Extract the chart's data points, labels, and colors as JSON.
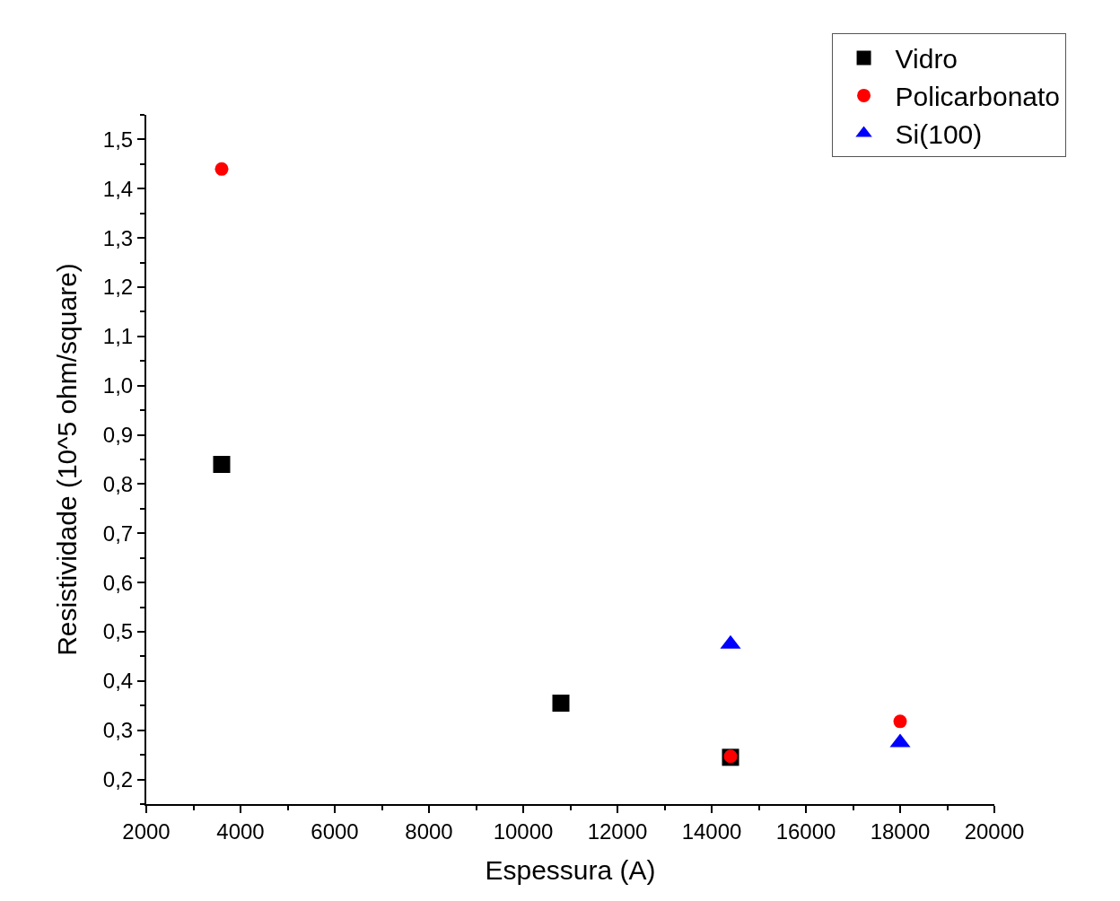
{
  "chart_data": {
    "type": "scatter",
    "xlabel": "Espessura (A)",
    "ylabel": "Resistividade (10^5 ohm/square)",
    "xlim": [
      2000,
      20000
    ],
    "xticks": [
      2000,
      4000,
      6000,
      8000,
      10000,
      12000,
      14000,
      16000,
      18000,
      20000
    ],
    "ylim": [
      0.15,
      1.55
    ],
    "yticks": [
      {
        "value": 0.2,
        "label": "0,2"
      },
      {
        "value": 0.3,
        "label": "0,3"
      },
      {
        "value": 0.4,
        "label": "0,4"
      },
      {
        "value": 0.5,
        "label": "0,5"
      },
      {
        "value": 0.6,
        "label": "0,6"
      },
      {
        "value": 0.7,
        "label": "0,7"
      },
      {
        "value": 0.8,
        "label": "0,8"
      },
      {
        "value": 0.9,
        "label": "0,9"
      },
      {
        "value": 1.0,
        "label": "1,0"
      },
      {
        "value": 1.1,
        "label": "1,1"
      },
      {
        "value": 1.2,
        "label": "1,2"
      },
      {
        "value": 1.3,
        "label": "1,3"
      },
      {
        "value": 1.4,
        "label": "1,4"
      },
      {
        "value": 1.5,
        "label": "1,5"
      }
    ],
    "grid": false,
    "legend": "top right",
    "series": [
      {
        "name": "Vidro",
        "color": "#000000",
        "marker": "square",
        "x": [
          3600,
          10800,
          14400
        ],
        "values": [
          0.84,
          0.355,
          0.245
        ]
      },
      {
        "name": "Policarbonato",
        "color": "#ff0000",
        "marker": "circle",
        "x": [
          3600,
          14400,
          18000
        ],
        "values": [
          1.44,
          0.247,
          0.318
        ]
      },
      {
        "name": "Si(100)",
        "color": "#0000ff",
        "marker": "triangle",
        "x": [
          14400,
          18000
        ],
        "values": [
          0.475,
          0.275
        ]
      }
    ]
  }
}
